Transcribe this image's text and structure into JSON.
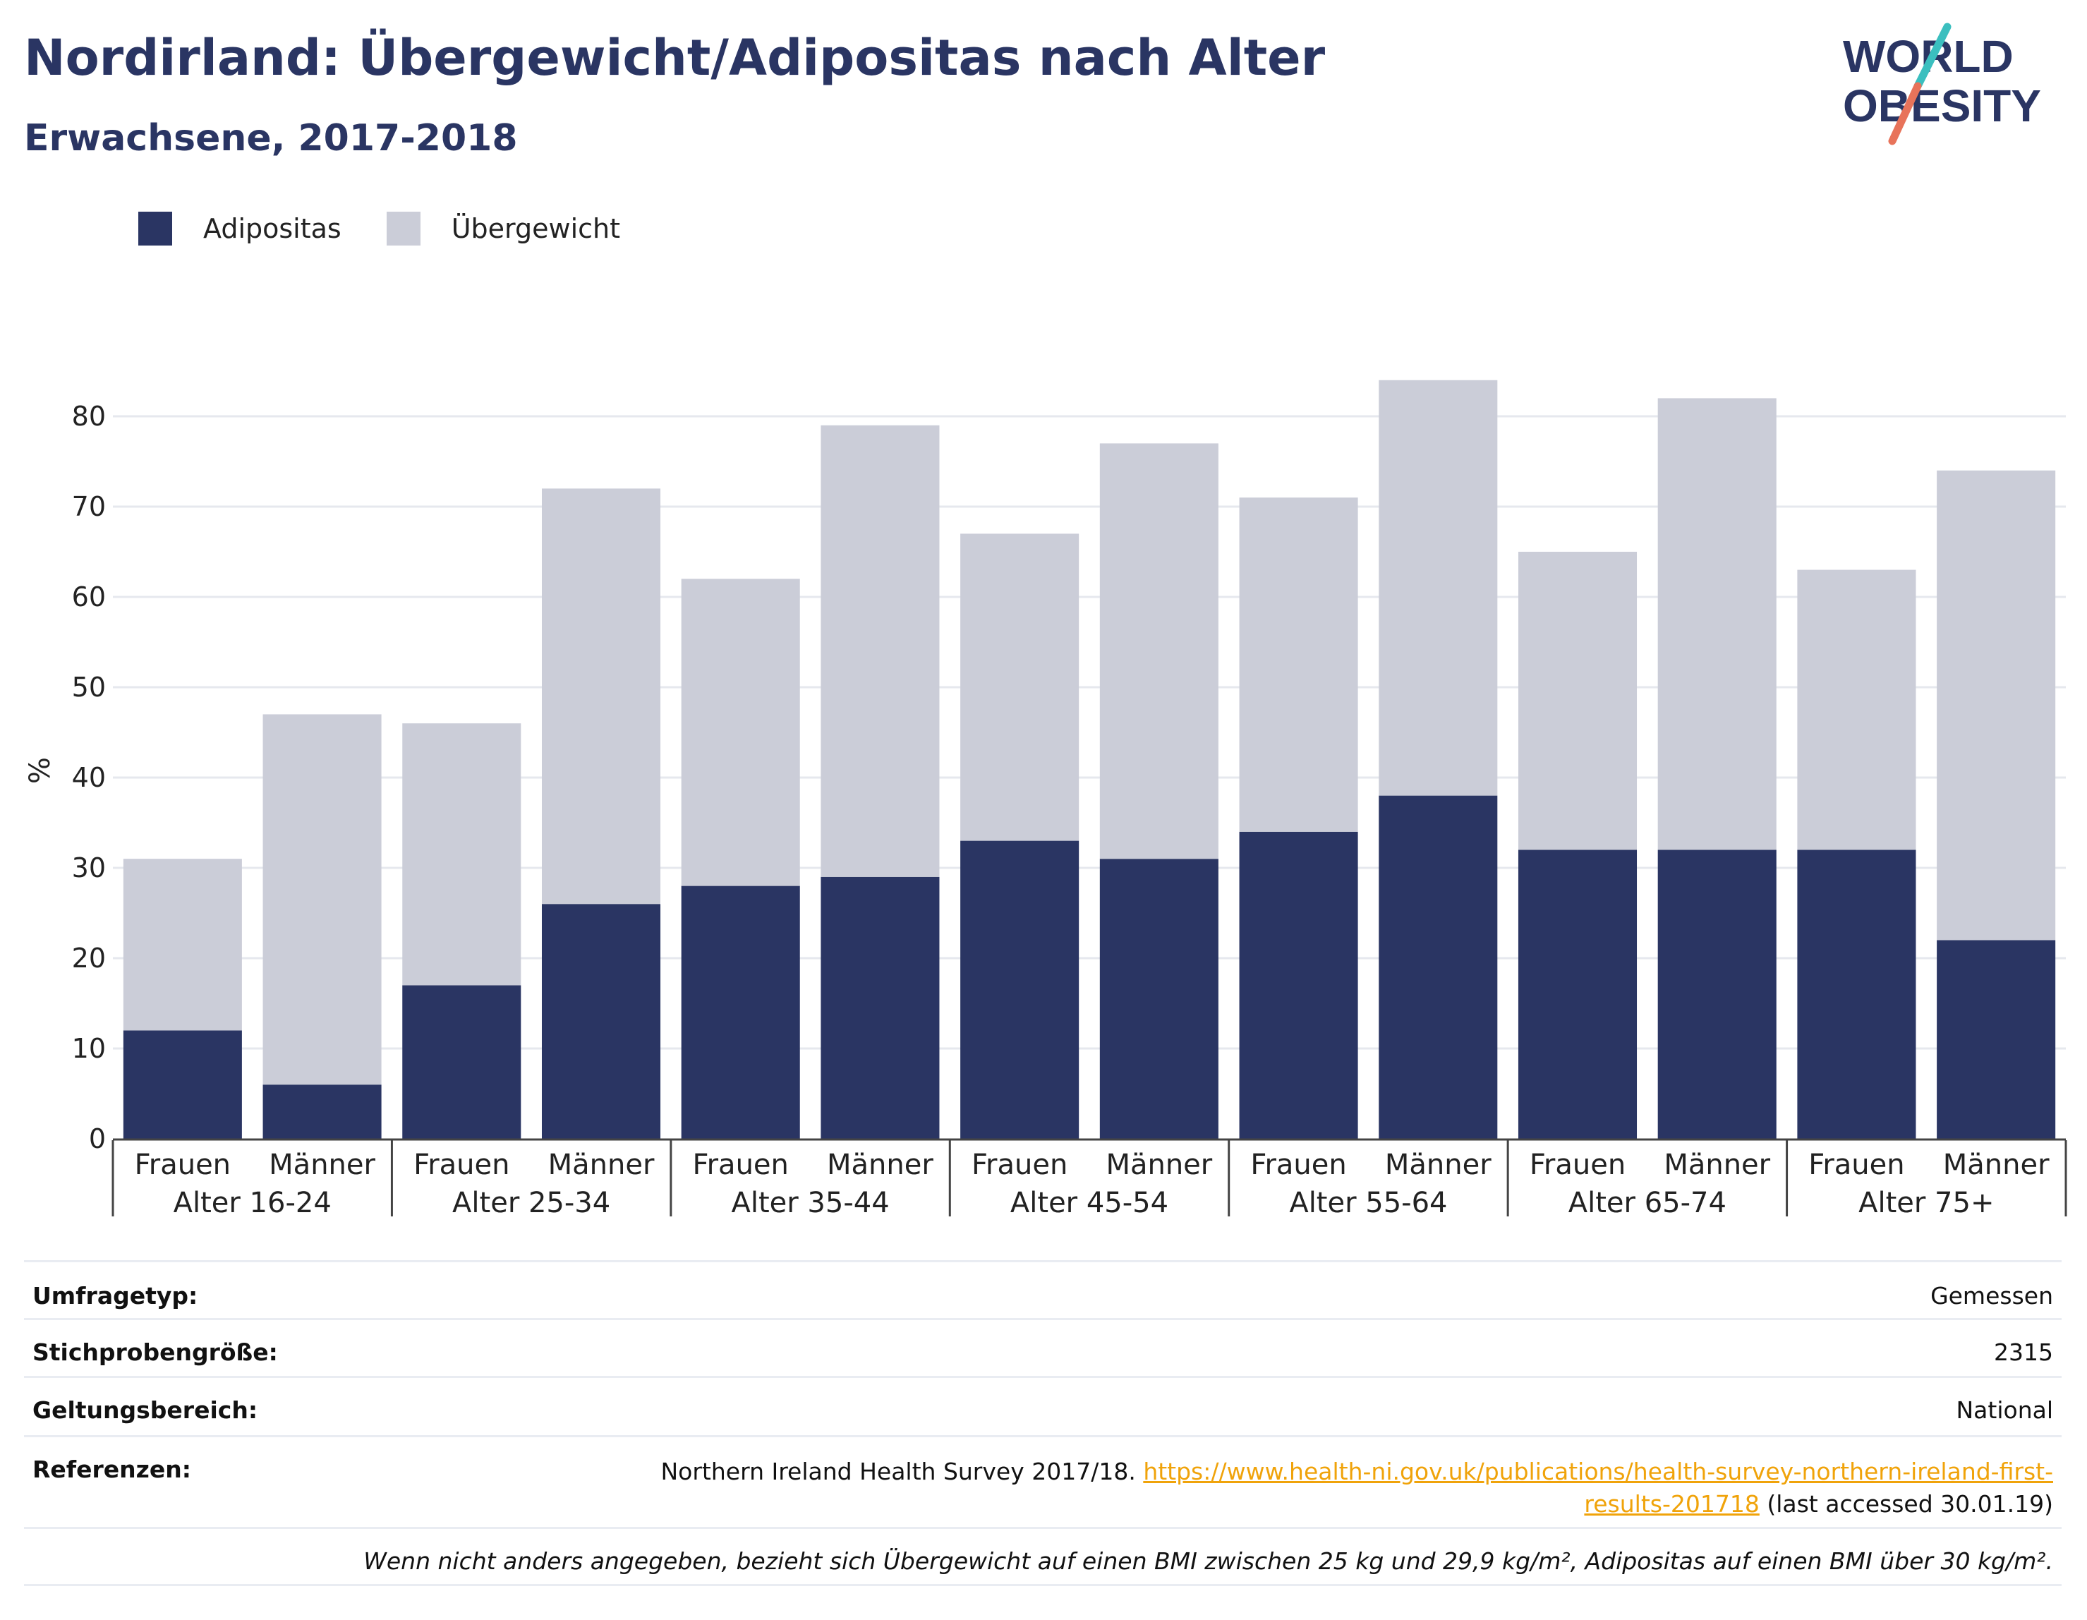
{
  "header": {
    "title": "Nordirland: Übergewicht/Adipositas nach Alter",
    "subtitle": "Erwachsene, 2017-2018"
  },
  "logo": {
    "line1": "WORLD",
    "line2": "OBESITY",
    "slash_colors": [
      "#3bbfbf",
      "#e8735a"
    ],
    "text_color": "#2a3563"
  },
  "colors": {
    "adipositas": "#2a3563",
    "uebergewicht": "#cbcdd8",
    "grid": "#e6e8ee",
    "axis": "#444444"
  },
  "legend": {
    "items": [
      {
        "label": "Adipositas",
        "color": "#2a3563"
      },
      {
        "label": "Übergewicht",
        "color": "#cbcdd8"
      }
    ]
  },
  "chart_data": {
    "type": "bar",
    "stacked": true,
    "ylabel": "%",
    "ylim": [
      0,
      87
    ],
    "yticks": [
      0,
      10,
      20,
      30,
      40,
      50,
      60,
      70,
      80
    ],
    "grid": true,
    "legend_position": "top-left",
    "groups": [
      {
        "label": "Alter 16-24",
        "categories": [
          "Frauen",
          "Männer"
        ]
      },
      {
        "label": "Alter 25-34",
        "categories": [
          "Frauen",
          "Männer"
        ]
      },
      {
        "label": "Alter 35-44",
        "categories": [
          "Frauen",
          "Männer"
        ]
      },
      {
        "label": "Alter 45-54",
        "categories": [
          "Frauen",
          "Männer"
        ]
      },
      {
        "label": "Alter 55-64",
        "categories": [
          "Frauen",
          "Männer"
        ]
      },
      {
        "label": "Alter 65-74",
        "categories": [
          "Frauen",
          "Männer"
        ]
      },
      {
        "label": "Alter 75+",
        "categories": [
          "Frauen",
          "Männer"
        ]
      }
    ],
    "series": [
      {
        "name": "Adipositas",
        "color": "#2a3563",
        "values": [
          12,
          6,
          17,
          26,
          28,
          29,
          33,
          31,
          34,
          38,
          32,
          32,
          32,
          22
        ]
      },
      {
        "name": "Übergewicht",
        "color": "#cbcdd8",
        "values": [
          19,
          41,
          29,
          46,
          34,
          50,
          34,
          46,
          37,
          46,
          33,
          50,
          31,
          52
        ]
      }
    ]
  },
  "info": {
    "rows": [
      {
        "label": "Umfragetyp:",
        "value": "Gemessen"
      },
      {
        "label": "Stichprobengröße:",
        "value": "2315"
      },
      {
        "label": "Geltungsbereich:",
        "value": "National"
      }
    ],
    "references": {
      "label": "Referenzen:",
      "prefix": "Northern Ireland Health Survey 2017/18.",
      "link": "https://www.health-ni.gov.uk/publications/health-survey-northern-ireland-first-results-201718",
      "suffix": "(last accessed 30.01.19)"
    },
    "note": "Wenn nicht anders angegeben, bezieht sich Übergewicht auf einen BMI zwischen 25 kg und 29,9 kg/m², Adipositas auf einen BMI über 30 kg/m²."
  }
}
